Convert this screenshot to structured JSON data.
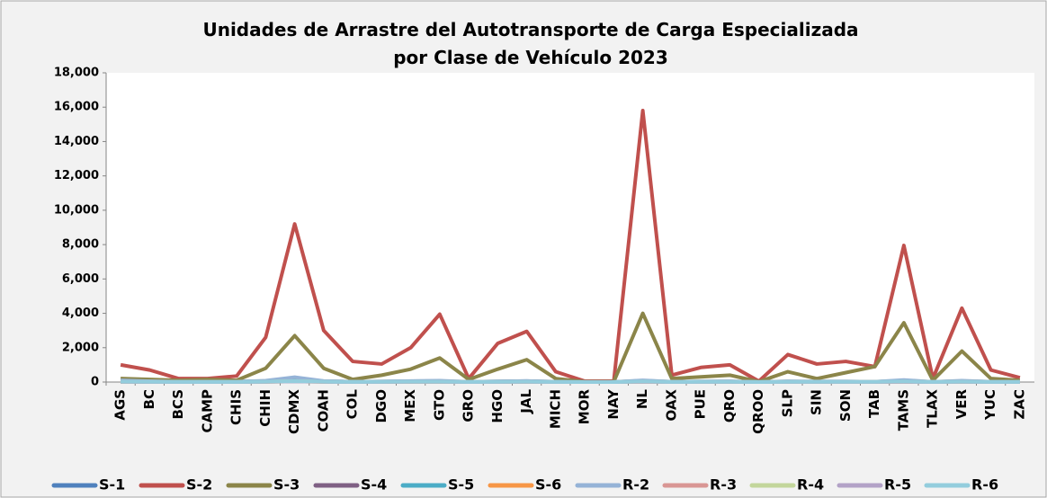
{
  "chart_data": {
    "type": "line",
    "title": [
      "Unidades de Arrastre del Autotransporte de Carga Especializada",
      "por Clase de Vehículo 2023"
    ],
    "categories": [
      "AGS",
      "BC",
      "BCS",
      "CAMP",
      "CHIS",
      "CHIH",
      "CDMX",
      "COAH",
      "COL",
      "DGO",
      "MEX",
      "GTO",
      "GRO",
      "HGO",
      "JAL",
      "MICH",
      "MOR",
      "NAY",
      "NL",
      "OAX",
      "PUE",
      "QRO",
      "QROO",
      "SLP",
      "SIN",
      "SON",
      "TAB",
      "TAMS",
      "TLAX",
      "VER",
      "YUC",
      "ZAC"
    ],
    "series": [
      {
        "name": "S-1",
        "color": "#4f81bd",
        "values": [
          150,
          50,
          20,
          20,
          30,
          60,
          150,
          50,
          20,
          30,
          50,
          60,
          10,
          40,
          60,
          20,
          5,
          5,
          80,
          20,
          30,
          40,
          5,
          40,
          30,
          30,
          20,
          80,
          10,
          60,
          20,
          10
        ]
      },
      {
        "name": "S-2",
        "color": "#c0504d",
        "values": [
          1000,
          700,
          200,
          200,
          350,
          2600,
          9200,
          3000,
          1200,
          1050,
          2000,
          3950,
          200,
          2250,
          2950,
          600,
          50,
          50,
          15800,
          400,
          850,
          1000,
          50,
          1600,
          1050,
          1200,
          900,
          7950,
          200,
          4300,
          700,
          250
        ]
      },
      {
        "name": "S-3",
        "color": "#8b8549",
        "values": [
          200,
          150,
          100,
          150,
          100,
          800,
          2700,
          800,
          150,
          400,
          750,
          1400,
          150,
          750,
          1300,
          200,
          20,
          20,
          4000,
          200,
          300,
          400,
          20,
          600,
          200,
          550,
          900,
          3450,
          100,
          1800,
          200,
          100
        ]
      },
      {
        "name": "S-4",
        "color": "#7f6084",
        "values": [
          20,
          10,
          5,
          5,
          5,
          20,
          60,
          20,
          5,
          10,
          20,
          20,
          5,
          10,
          20,
          5,
          0,
          0,
          30,
          5,
          10,
          10,
          0,
          10,
          10,
          10,
          10,
          30,
          5,
          20,
          5,
          5
        ]
      },
      {
        "name": "S-5",
        "color": "#4bacc6",
        "values": [
          30,
          20,
          10,
          10,
          10,
          30,
          80,
          30,
          10,
          20,
          30,
          30,
          10,
          20,
          30,
          10,
          0,
          0,
          40,
          10,
          20,
          20,
          0,
          20,
          10,
          10,
          10,
          40,
          5,
          30,
          10,
          5
        ]
      },
      {
        "name": "S-6",
        "color": "#f79646",
        "values": [
          10,
          5,
          0,
          0,
          0,
          10,
          30,
          10,
          0,
          5,
          10,
          10,
          0,
          5,
          10,
          0,
          0,
          0,
          20,
          0,
          5,
          5,
          0,
          5,
          5,
          5,
          5,
          10,
          0,
          10,
          0,
          0
        ]
      },
      {
        "name": "R-2",
        "color": "#95b3d7",
        "values": [
          100,
          50,
          20,
          20,
          20,
          80,
          280,
          60,
          20,
          30,
          60,
          80,
          10,
          40,
          60,
          20,
          5,
          5,
          100,
          20,
          30,
          40,
          5,
          40,
          30,
          30,
          20,
          120,
          10,
          80,
          20,
          10
        ]
      },
      {
        "name": "R-3",
        "color": "#d99694",
        "values": [
          10,
          5,
          0,
          0,
          0,
          10,
          40,
          10,
          0,
          5,
          10,
          10,
          0,
          5,
          10,
          0,
          0,
          0,
          20,
          0,
          5,
          5,
          0,
          5,
          5,
          5,
          5,
          10,
          0,
          10,
          0,
          0
        ]
      },
      {
        "name": "R-4",
        "color": "#c3d69b",
        "values": [
          20,
          10,
          5,
          5,
          5,
          20,
          60,
          20,
          5,
          10,
          20,
          20,
          5,
          10,
          20,
          5,
          0,
          0,
          30,
          5,
          10,
          10,
          0,
          10,
          10,
          10,
          10,
          30,
          5,
          20,
          5,
          5
        ]
      },
      {
        "name": "R-5",
        "color": "#b3a2c7",
        "values": [
          10,
          5,
          0,
          0,
          0,
          10,
          30,
          10,
          0,
          5,
          10,
          10,
          0,
          5,
          10,
          0,
          0,
          0,
          20,
          0,
          5,
          5,
          0,
          5,
          5,
          5,
          5,
          10,
          0,
          10,
          0,
          0
        ]
      },
      {
        "name": "R-6",
        "color": "#93cddd",
        "values": [
          20,
          10,
          5,
          5,
          5,
          20,
          50,
          20,
          5,
          10,
          20,
          20,
          5,
          10,
          20,
          5,
          0,
          0,
          30,
          5,
          10,
          10,
          0,
          10,
          10,
          10,
          10,
          30,
          5,
          20,
          5,
          5
        ]
      }
    ],
    "ylim": [
      0,
      18000
    ],
    "yticks": [
      0,
      {
        "value": 2000,
        "label": "2,000"
      },
      {
        "value": 4000,
        "label": "4,000"
      },
      {
        "value": 6000,
        "label": "6,000"
      },
      {
        "value": 8000,
        "label": "8,000"
      },
      {
        "value": 10000,
        "label": "10,000"
      },
      {
        "value": 12000,
        "label": "12,000"
      },
      {
        "value": 14000,
        "label": "14,000"
      },
      {
        "value": 16000,
        "label": "16,000"
      },
      {
        "value": 18000,
        "label": "18,000"
      }
    ],
    "grid": false,
    "legend": "bottom"
  }
}
